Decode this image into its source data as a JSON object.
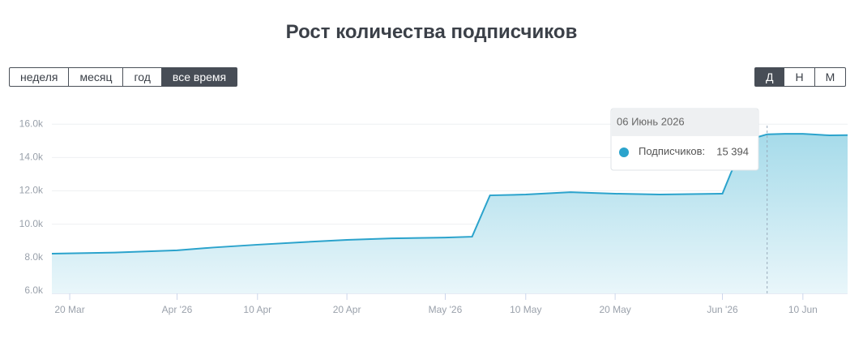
{
  "title": "Рост количества подписчиков",
  "period_buttons": [
    "неделя",
    "месяц",
    "год",
    "все время"
  ],
  "period_active": 3,
  "granularity_buttons": [
    "Д",
    "Н",
    "М"
  ],
  "granularity_active": 0,
  "chart_data": {
    "type": "area",
    "x": [
      "2026-03-18",
      "2026-03-25",
      "2026-04-01",
      "2026-04-05",
      "2026-04-10",
      "2026-04-15",
      "2026-04-20",
      "2026-04-25",
      "2026-05-01",
      "2026-05-04",
      "2026-05-06",
      "2026-05-10",
      "2026-05-15",
      "2026-05-20",
      "2026-05-25",
      "2026-06-01",
      "2026-06-02",
      "2026-06-04",
      "2026-06-06",
      "2026-06-08",
      "2026-06-10",
      "2026-06-13",
      "2026-06-15"
    ],
    "series": [
      {
        "name": "Подписчиков",
        "color": "#2ba3cc",
        "values": [
          8230,
          8300,
          8430,
          8600,
          8770,
          8920,
          9060,
          9150,
          9200,
          9250,
          11730,
          11780,
          11920,
          11830,
          11780,
          11830,
          13140,
          15080,
          15394,
          15420,
          15420,
          15330,
          15340
        ]
      }
    ],
    "xlim": [
      "2026-03-18",
      "2026-06-15"
    ],
    "xticks": [
      {
        "value": "2026-03-20",
        "label": "20 Mar"
      },
      {
        "value": "2026-04-01",
        "label": "Apr '26"
      },
      {
        "value": "2026-04-10",
        "label": "10 Apr"
      },
      {
        "value": "2026-04-20",
        "label": "20 Apr"
      },
      {
        "value": "2026-05-01",
        "label": "May '26"
      },
      {
        "value": "2026-05-10",
        "label": "10 May"
      },
      {
        "value": "2026-05-20",
        "label": "20 May"
      },
      {
        "value": "2026-06-01",
        "label": "Jun '26"
      },
      {
        "value": "2026-06-10",
        "label": "10 Jun"
      }
    ],
    "ylim": [
      5850,
      16400
    ],
    "yticks": [
      {
        "value": 6000,
        "label": "6.0k"
      },
      {
        "value": 8000,
        "label": "8.0k"
      },
      {
        "value": 10000,
        "label": "10.0k"
      },
      {
        "value": 12000,
        "label": "12.0k"
      },
      {
        "value": 14000,
        "label": "14.0k"
      },
      {
        "value": 16000,
        "label": "16.0k"
      }
    ],
    "grid": true,
    "tooltip": {
      "x": "2026-06-06",
      "date_label": "06 Июнь 2026",
      "value": 15394,
      "value_label": "15 394"
    }
  }
}
